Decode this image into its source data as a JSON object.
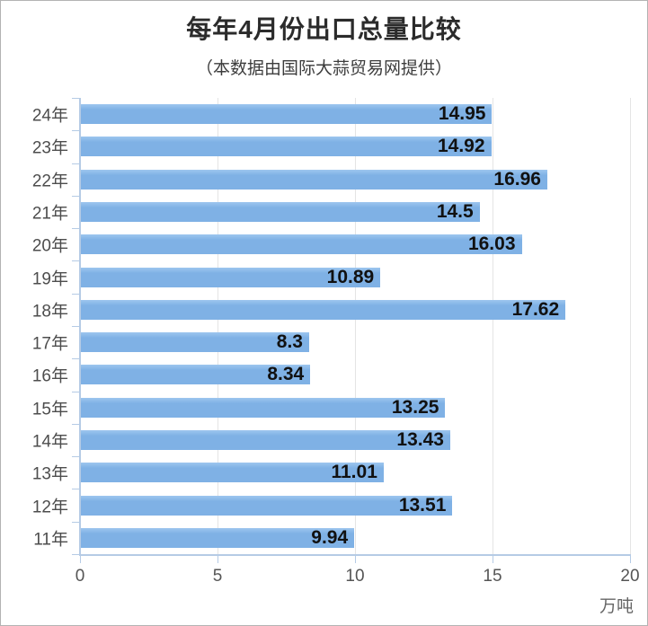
{
  "page": {
    "title": "每年4月份出口总量比较",
    "subtitle": "（本数据由国际大蒜贸易网提供）",
    "unit_label": "万吨"
  },
  "chart_data": {
    "type": "bar",
    "orientation": "horizontal",
    "title": "每年4月份出口总量比较",
    "subtitle": "（本数据由国际大蒜贸易网提供）",
    "categories": [
      "24年",
      "23年",
      "22年",
      "21年",
      "20年",
      "19年",
      "18年",
      "17年",
      "16年",
      "15年",
      "14年",
      "13年",
      "12年",
      "11年"
    ],
    "values": [
      14.95,
      14.92,
      16.96,
      14.5,
      16.03,
      10.89,
      17.62,
      8.3,
      8.34,
      13.25,
      13.43,
      11.01,
      13.51,
      9.94
    ],
    "xlabel": "万吨",
    "ylabel": "",
    "xlim": [
      0,
      20
    ],
    "xticks": [
      0,
      5,
      10,
      15,
      20
    ],
    "grid": true,
    "value_labels_position": "inside-right",
    "colors": {
      "bar": "#7fb1e5",
      "bar_highlight": "#9ec6ef",
      "axis": "#b5cbe5",
      "grid": "#e4e4e4",
      "category_label": "#4d4d4d",
      "tick_label": "#555555",
      "value_label": "#111111",
      "title": "#2b2b2b",
      "subtitle": "#3c3c3c"
    }
  }
}
